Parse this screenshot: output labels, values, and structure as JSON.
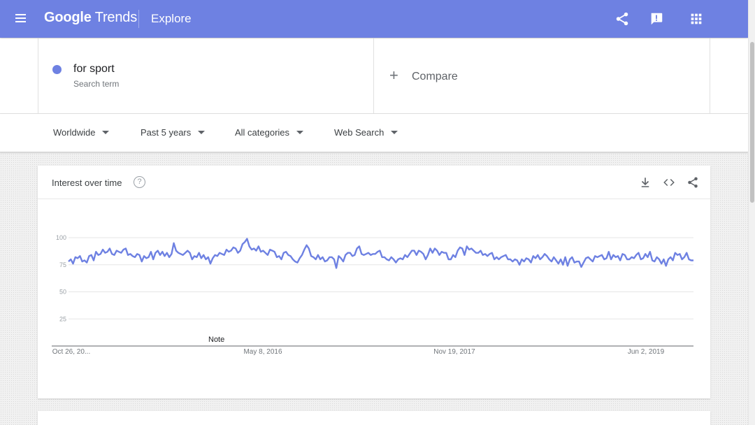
{
  "header": {
    "logo_google": "Google",
    "logo_trends": "Trends",
    "page_title": "Explore"
  },
  "search": {
    "term": "for sport",
    "term_subtitle": "Search term",
    "term_color": "#6e81e2",
    "compare_label": "Compare"
  },
  "filters": {
    "region": "Worldwide",
    "time": "Past 5 years",
    "category": "All categories",
    "property": "Web Search"
  },
  "card": {
    "title": "Interest over time",
    "help": "?",
    "note": "Note"
  },
  "icons": {
    "menu": "menu-icon",
    "share": "share-icon",
    "feedback": "feedback-icon",
    "apps": "apps-icon",
    "download": "download-icon",
    "embed": "embed-icon",
    "card_share": "share-icon"
  },
  "chart_data": {
    "type": "line",
    "title": "",
    "xlabel": "",
    "ylabel": "",
    "ylim": [
      0,
      100
    ],
    "yticks": [
      25,
      50,
      75,
      100
    ],
    "xticks": [
      "Oct 26, 20...",
      "May 8, 2016",
      "Nov 19, 2017",
      "Jun 2, 2019"
    ],
    "grid": true,
    "series": [
      {
        "name": "for sport",
        "color": "#6e81e2",
        "values": [
          78,
          80,
          76,
          82,
          81,
          83,
          78,
          79,
          77,
          83,
          84,
          79,
          87,
          84,
          85,
          89,
          86,
          87,
          90,
          85,
          84,
          88,
          87,
          86,
          89,
          90,
          84,
          85,
          83,
          82,
          85,
          84,
          78,
          83,
          81,
          82,
          87,
          80,
          86,
          88,
          84,
          87,
          83,
          86,
          82,
          85,
          95,
          88,
          86,
          85,
          84,
          86,
          88,
          86,
          80,
          83,
          82,
          86,
          81,
          84,
          80,
          82,
          76,
          81,
          84,
          83,
          86,
          85,
          84,
          89,
          87,
          88,
          91,
          90,
          86,
          88,
          94,
          96,
          99,
          92,
          89,
          90,
          88,
          92,
          87,
          88,
          86,
          84,
          89,
          88,
          87,
          82,
          83,
          80,
          86,
          87,
          84,
          83,
          80,
          78,
          77,
          81,
          84,
          89,
          93,
          90,
          83,
          82,
          80,
          84,
          80,
          82,
          78,
          79,
          82,
          82,
          80,
          72,
          83,
          81,
          78,
          84,
          86,
          86,
          83,
          84,
          90,
          92,
          85,
          84,
          85,
          86,
          84,
          85,
          85,
          87,
          88,
          82,
          82,
          80,
          79,
          82,
          80,
          77,
          80,
          81,
          80,
          84,
          82,
          85,
          88,
          88,
          84,
          88,
          87,
          85,
          80,
          84,
          90,
          86,
          90,
          88,
          84,
          87,
          86,
          86,
          80,
          80,
          84,
          82,
          88,
          91,
          90,
          84,
          92,
          89,
          90,
          88,
          86,
          86,
          88,
          84,
          85,
          83,
          85,
          86,
          80,
          82,
          80,
          82,
          83,
          84,
          80,
          80,
          78,
          80,
          79,
          75,
          80,
          78,
          81,
          80,
          77,
          83,
          81,
          84,
          80,
          82,
          85,
          83,
          80,
          78,
          82,
          79,
          76,
          80,
          75,
          82,
          74,
          80,
          82,
          77,
          78,
          78,
          73,
          77,
          81,
          82,
          80,
          78,
          83,
          82,
          83,
          84,
          80,
          81,
          87,
          80,
          84,
          82,
          83,
          79,
          85,
          84,
          80,
          80,
          82,
          81,
          84,
          86,
          80,
          81,
          85,
          82,
          87,
          79,
          78,
          82,
          80,
          76,
          80,
          74,
          80,
          82,
          79,
          86,
          84,
          85,
          80,
          82,
          86,
          80,
          79,
          79
        ]
      }
    ]
  }
}
